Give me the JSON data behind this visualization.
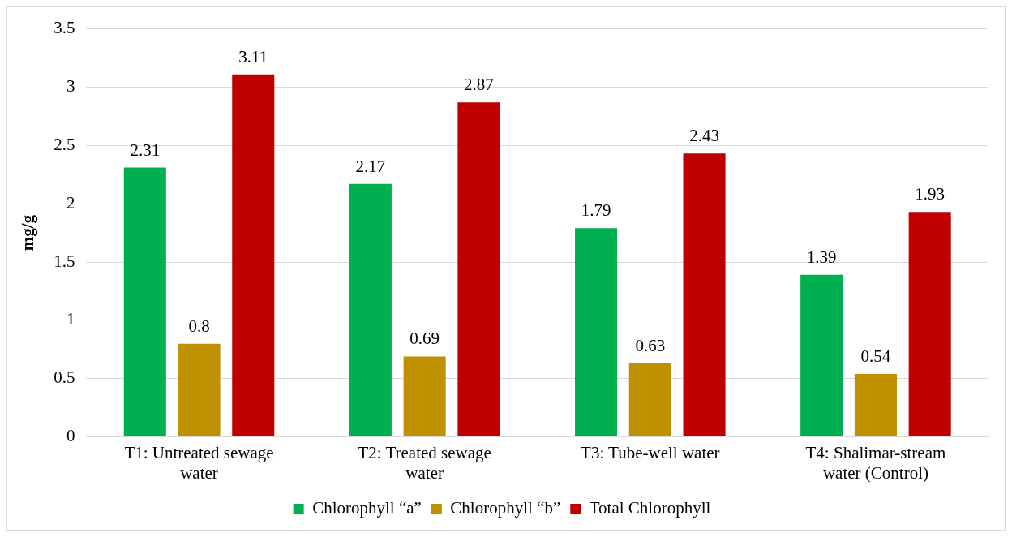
{
  "chart_data": {
    "type": "bar",
    "ylabel": "mg/g",
    "categories": [
      "T1: Untreated sewage water",
      "T2: Treated sewage water",
      "T3: Tube-well water",
      "T4: Shalimar-stream water (Control)"
    ],
    "series": [
      {
        "name": "Chlorophyll “a”",
        "color": "#00b050",
        "values": [
          2.31,
          2.17,
          1.79,
          1.39
        ]
      },
      {
        "name": "Chlorophyll “b”",
        "color": "#bf9000",
        "values": [
          0.8,
          0.69,
          0.63,
          0.54
        ]
      },
      {
        "name": "Total Chlorophyll",
        "color": "#c00000",
        "values": [
          3.11,
          2.87,
          2.43,
          1.93
        ]
      }
    ],
    "ylim": [
      0,
      3.5
    ],
    "yticks": [
      0,
      0.5,
      1,
      1.5,
      2,
      2.5,
      3,
      3.5
    ],
    "grid": "y",
    "legend": "bottom",
    "data_labels": true
  }
}
